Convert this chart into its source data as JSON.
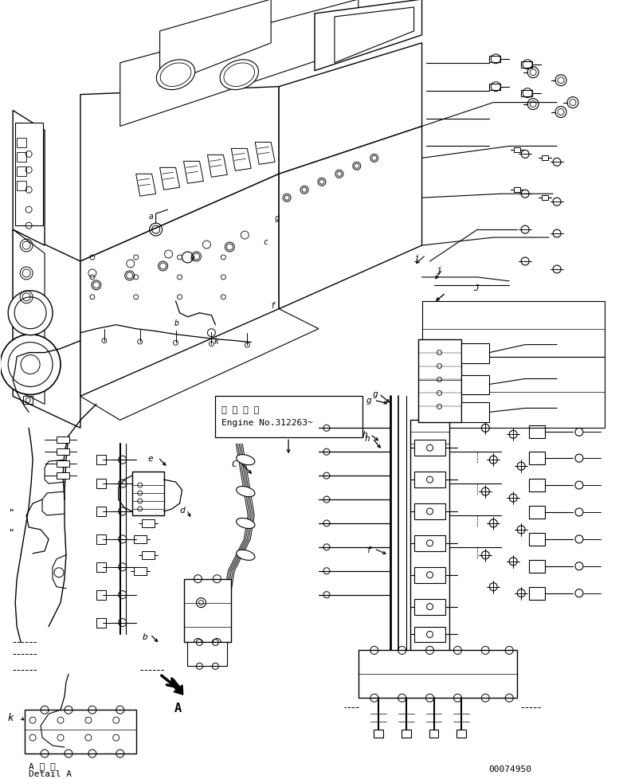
{
  "part_number": "00074950",
  "annotation_box_text_1": "適 用 号 機",
  "annotation_box_text_2": "Engine No.312263~",
  "detail_text_1": "A 詳 細",
  "detail_text_2": "Detail A",
  "bg_color": "#ffffff",
  "line_color": "#000000",
  "fig_width": 7.82,
  "fig_height": 9.79,
  "dpi": 100
}
